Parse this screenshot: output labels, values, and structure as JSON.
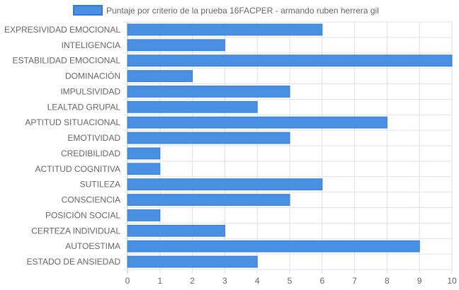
{
  "chart_data": {
    "type": "bar",
    "orientation": "horizontal",
    "categories": [
      "EXPRESIVIDAD EMOCIONAL",
      "INTELIGENCIA",
      "ESTABILIDAD EMOCIONAL",
      "DOMINACIÓN",
      "IMPULSIVIDAD",
      "LEALTAD GRUPAL",
      "APTITUD SITUACIONAL",
      "EMOTIVIDAD",
      "CREDIBILIDAD",
      "ACTITUD COGNITIVA",
      "SUTILEZA",
      "CONSCIENCIA",
      "POSICIÓN SOCIAL",
      "CERTEZA INDIVIDUAL",
      "AUTOESTIMA",
      "ESTADO DE ANSIEDAD"
    ],
    "series": [
      {
        "name": "Puntaje por criterio de la prueba 16FACPER - armando ruben herrera gil",
        "values": [
          6,
          3,
          10,
          2,
          5,
          4,
          8,
          5,
          1,
          1,
          6,
          5,
          1,
          3,
          9,
          4
        ],
        "color": "#4a90e2"
      }
    ],
    "x_ticks": [
      "0",
      "1",
      "2",
      "3",
      "4",
      "5",
      "6",
      "7",
      "8",
      "9",
      "10"
    ],
    "xlim": [
      0,
      10
    ],
    "grid": true,
    "legend_position": "top"
  }
}
